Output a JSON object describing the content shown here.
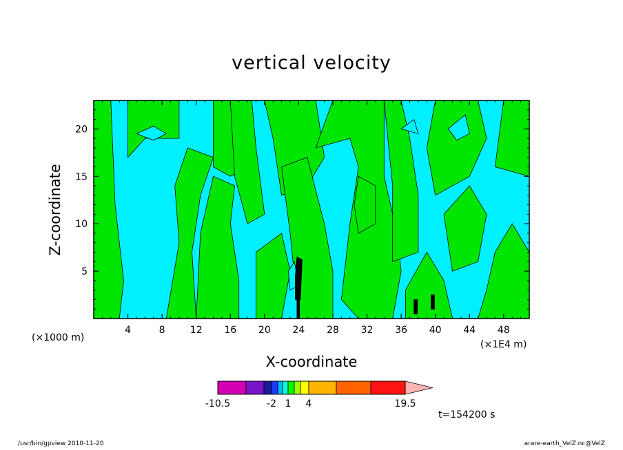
{
  "chart_data": {
    "type": "heatmap",
    "title": "vertical velocity",
    "xlabel": "X-coordinate",
    "ylabel": "Z-coordinate",
    "x_unit_left": "(×1000 m)",
    "x_unit_right": "(×1E4 m)",
    "time_label": "t=154200 s",
    "xlim": [
      0,
      51
    ],
    "ylim": [
      0,
      23
    ],
    "x_ticks": [
      4,
      8,
      12,
      16,
      20,
      24,
      28,
      32,
      36,
      40,
      44,
      48
    ],
    "y_ticks": [
      5,
      10,
      15,
      20
    ],
    "colorbar": {
      "levels": [
        -10.5,
        -8,
        -4,
        -2,
        -1,
        0,
        1,
        2,
        3,
        4,
        8,
        12,
        19.5
      ],
      "colors": [
        "#d400b4",
        "#7a14c8",
        "#1a1aa0",
        "#1e3cff",
        "#00b4ff",
        "#00ffd2",
        "#00ff00",
        "#a0ff00",
        "#ffff00",
        "#ffb400",
        "#ff6400",
        "#ff1414",
        "#ff7878",
        "#ffb4b4"
      ],
      "tick_labels": [
        {
          "value": -10.5,
          "label": "-10.5"
        },
        {
          "value": -2,
          "label": "-2"
        },
        {
          "value": 1,
          "label": "1"
        },
        {
          "value": 4,
          "label": "4"
        },
        {
          "value": 19.5,
          "label": "19.5"
        }
      ]
    },
    "region_colors": {
      "background": "#00f0ff",
      "positive": "#00e600",
      "strong": "#000000"
    },
    "green_regions": [
      [
        [
          0,
          0
        ],
        [
          3,
          0
        ],
        [
          3.5,
          4
        ],
        [
          2.5,
          12
        ],
        [
          2,
          23
        ],
        [
          0,
          23
        ]
      ],
      [
        [
          4,
          17
        ],
        [
          6,
          19
        ],
        [
          10,
          19
        ],
        [
          10,
          23
        ],
        [
          4,
          23
        ]
      ],
      [
        [
          8.5,
          0
        ],
        [
          12,
          0
        ],
        [
          11.5,
          7
        ],
        [
          12.5,
          13
        ],
        [
          14,
          17
        ],
        [
          11,
          18
        ],
        [
          9.5,
          14
        ],
        [
          10,
          8
        ]
      ],
      [
        [
          12,
          0
        ],
        [
          17,
          0
        ],
        [
          17,
          4
        ],
        [
          16,
          10
        ],
        [
          16.5,
          14
        ],
        [
          14,
          15
        ],
        [
          12.5,
          9
        ]
      ],
      [
        [
          14,
          16
        ],
        [
          16,
          15
        ],
        [
          18,
          16
        ],
        [
          18,
          23
        ],
        [
          14,
          23
        ]
      ],
      [
        [
          18,
          10
        ],
        [
          20,
          11
        ],
        [
          19,
          18
        ],
        [
          18.5,
          23
        ],
        [
          16,
          23
        ],
        [
          16.5,
          15
        ]
      ],
      [
        [
          19,
          0
        ],
        [
          22,
          0
        ],
        [
          23,
          5
        ],
        [
          22,
          9
        ],
        [
          19,
          7
        ]
      ],
      [
        [
          22,
          13
        ],
        [
          25,
          14
        ],
        [
          27,
          17
        ],
        [
          26,
          23
        ],
        [
          20,
          23
        ],
        [
          21,
          19
        ]
      ],
      [
        [
          24,
          0
        ],
        [
          28,
          0
        ],
        [
          28,
          5
        ],
        [
          27,
          10
        ],
        [
          25,
          17
        ],
        [
          22,
          16
        ],
        [
          23,
          9
        ]
      ],
      [
        [
          26,
          18
        ],
        [
          30,
          19
        ],
        [
          31,
          16
        ],
        [
          30,
          10
        ],
        [
          29,
          2
        ],
        [
          31,
          0
        ],
        [
          35,
          0
        ],
        [
          36,
          5
        ],
        [
          35.5,
          9
        ],
        [
          34,
          15
        ],
        [
          34,
          23
        ],
        [
          28,
          23
        ]
      ],
      [
        [
          31,
          9
        ],
        [
          33,
          10
        ],
        [
          33,
          14
        ],
        [
          31,
          15
        ],
        [
          30.5,
          12
        ]
      ],
      [
        [
          35,
          6
        ],
        [
          38,
          7
        ],
        [
          38,
          13
        ],
        [
          37,
          19
        ],
        [
          36,
          23
        ],
        [
          34,
          23
        ],
        [
          35,
          14
        ]
      ],
      [
        [
          36.5,
          0
        ],
        [
          42,
          0
        ],
        [
          41,
          4
        ],
        [
          39,
          7
        ],
        [
          36.5,
          3
        ]
      ],
      [
        [
          40,
          13
        ],
        [
          44,
          15
        ],
        [
          46,
          19
        ],
        [
          45,
          23
        ],
        [
          40,
          23
        ],
        [
          39,
          18
        ]
      ],
      [
        [
          45,
          0
        ],
        [
          51,
          0
        ],
        [
          51,
          7
        ],
        [
          49,
          10
        ],
        [
          47,
          7
        ],
        [
          46,
          3
        ]
      ],
      [
        [
          47,
          16
        ],
        [
          51,
          15
        ],
        [
          51,
          23
        ],
        [
          48,
          23
        ]
      ],
      [
        [
          42,
          5
        ],
        [
          45,
          6
        ],
        [
          46,
          11
        ],
        [
          44,
          14
        ],
        [
          41,
          11
        ]
      ]
    ],
    "cyan_islands": [
      [
        [
          5,
          19.5
        ],
        [
          7,
          20.3
        ],
        [
          8.5,
          19.5
        ],
        [
          7,
          18.8
        ]
      ],
      [
        [
          36,
          20
        ],
        [
          37.5,
          21
        ],
        [
          38,
          19.5
        ]
      ],
      [
        [
          23,
          3
        ],
        [
          24,
          3.5
        ],
        [
          23.5,
          6
        ],
        [
          22.8,
          5
        ]
      ],
      [
        [
          41.5,
          20
        ],
        [
          43.5,
          21.5
        ],
        [
          44,
          19.5
        ],
        [
          42.5,
          18.8
        ]
      ]
    ],
    "black_regions": [
      [
        [
          23.6,
          2
        ],
        [
          24.2,
          2
        ],
        [
          24.4,
          6.2
        ],
        [
          23.8,
          6.5
        ],
        [
          23.6,
          4.5
        ]
      ],
      [
        [
          23.8,
          0
        ],
        [
          24.1,
          0
        ],
        [
          24.1,
          2
        ],
        [
          23.8,
          2
        ]
      ],
      [
        [
          39.5,
          1
        ],
        [
          39.9,
          1
        ],
        [
          39.9,
          2.5
        ],
        [
          39.5,
          2.5
        ]
      ],
      [
        [
          37.5,
          0.5
        ],
        [
          37.9,
          0.5
        ],
        [
          37.9,
          2
        ],
        [
          37.5,
          2
        ]
      ]
    ]
  },
  "footer": {
    "left": "/usr/bin/gpview   2010-11-20",
    "right": "arare-earth_VelZ.nc@VelZ"
  }
}
